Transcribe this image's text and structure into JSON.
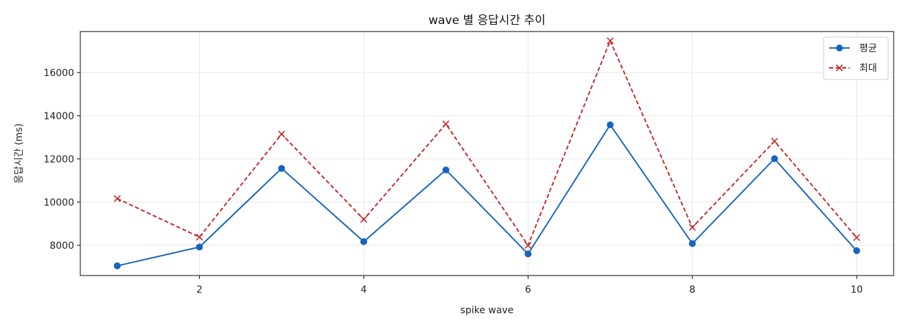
{
  "chart_data": {
    "type": "line",
    "title": "wave 별 응답시간 추이",
    "xlabel": "spike wave",
    "ylabel": "응답시간 (ms)",
    "x": [
      1,
      2,
      3,
      4,
      5,
      6,
      7,
      8,
      9,
      10
    ],
    "xticks": [
      2,
      4,
      6,
      8,
      10
    ],
    "yticks": [
      8000,
      10000,
      12000,
      14000,
      16000
    ],
    "xlim": [
      0.55,
      10.45
    ],
    "ylim": [
      6600,
      17900
    ],
    "grid": true,
    "legend_position": "top-right",
    "series": [
      {
        "name": "평균",
        "values": [
          7050,
          7920,
          11560,
          8170,
          11490,
          7600,
          13580,
          8080,
          12010,
          7750
        ],
        "color": "#1565c0",
        "line_style": "solid",
        "marker": "circle"
      },
      {
        "name": "최대",
        "values": [
          10160,
          8380,
          13150,
          9200,
          13620,
          8000,
          17470,
          8830,
          12820,
          8360
        ],
        "color": "#c62828",
        "line_style": "dashed",
        "marker": "x"
      }
    ]
  }
}
